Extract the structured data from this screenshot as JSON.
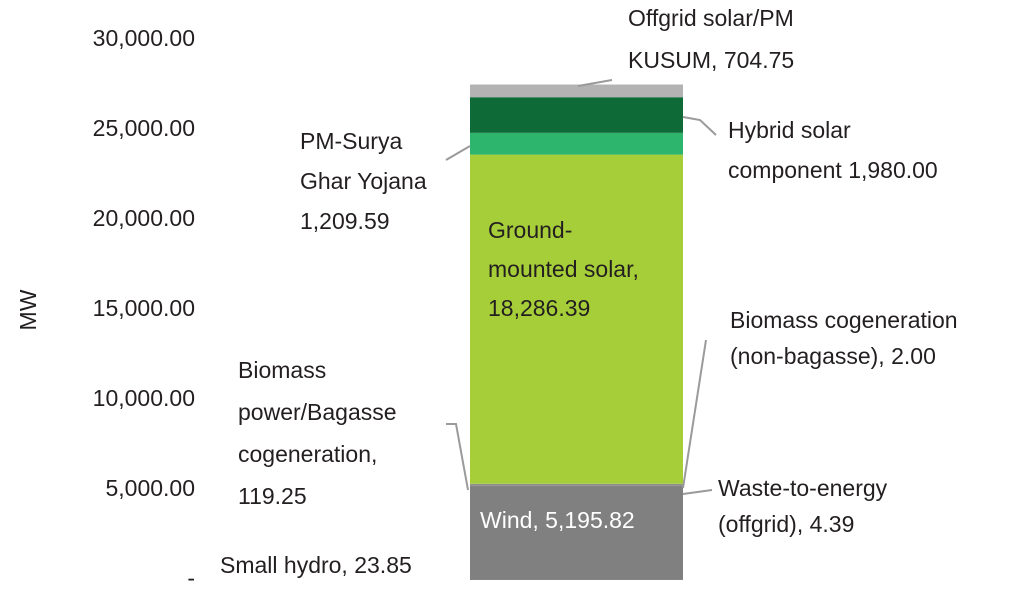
{
  "chart_data": {
    "type": "stacked-bar",
    "y_label": "MW",
    "ylim": [
      0,
      30000
    ],
    "yticks": [
      {
        "value": 0,
        "label": "-"
      },
      {
        "value": 5000,
        "label": "5,000.00"
      },
      {
        "value": 10000,
        "label": "10,000.00"
      },
      {
        "value": 15000,
        "label": "15,000.00"
      },
      {
        "value": 20000,
        "label": "20,000.00"
      },
      {
        "value": 25000,
        "label": "25,000.00"
      },
      {
        "value": 30000,
        "label": "30,000.00"
      }
    ],
    "series": [
      {
        "label_lines": [
          "Small hydro,  23.85"
        ],
        "values": [
          23.85
        ],
        "color": "#7a7a7a"
      },
      {
        "label_lines": [
          "Wind,  5,195.82"
        ],
        "values": [
          5195.82
        ],
        "color": "#808080"
      },
      {
        "label_lines": [
          "Waste-to-energy",
          "(offgrid),  4.39"
        ],
        "values": [
          4.39
        ],
        "color": "#858585"
      },
      {
        "label_lines": [
          "Biomass cogeneration",
          "(non-bagasse),  2.00"
        ],
        "values": [
          2.0
        ],
        "color": "#8a8a8a"
      },
      {
        "label_lines": [
          "Biomass",
          "power/Bagasse",
          "cogeneration,",
          "119.25"
        ],
        "values": [
          119.25
        ],
        "color": "#8e8e8e"
      },
      {
        "label_lines": [
          "Ground-",
          "mounted solar,",
          "18,286.39"
        ],
        "values": [
          18286.39
        ],
        "color": "#a6ce39"
      },
      {
        "label_lines": [
          "PM-Surya",
          "Ghar Yojana",
          "1,209.59"
        ],
        "values": [
          1209.59
        ],
        "color": "#2db56e"
      },
      {
        "label_lines": [
          "Hybrid solar",
          "component 1,980.00"
        ],
        "values": [
          1980.0
        ],
        "color": "#0e6b38"
      },
      {
        "label_lines": [
          "Offgrid solar/PM",
          "KUSUM, 704.75"
        ],
        "values": [
          704.75
        ],
        "color": "#b3b3b3"
      }
    ]
  }
}
